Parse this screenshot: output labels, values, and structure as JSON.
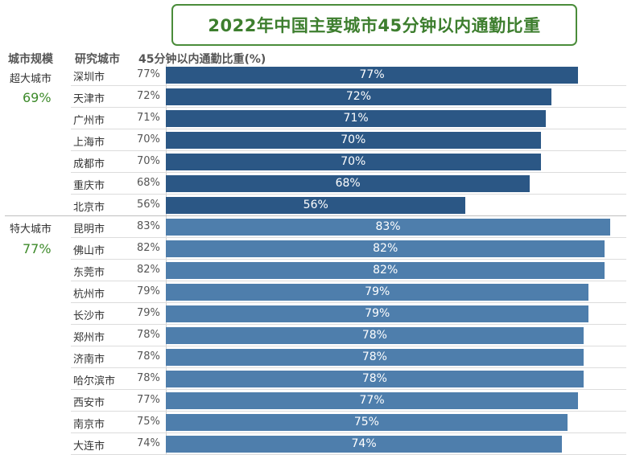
{
  "title": "2022年中国主要城市45分钟以内通勤比重",
  "headers": {
    "scale": "城市规模",
    "city": "研究城市",
    "metric": "45分钟以内通勤比重(%)"
  },
  "colors": {
    "super": "#2b5785",
    "mega": "#4e7eac",
    "title": "#3d7e2e",
    "group_value": "#3d8a2a"
  },
  "groups": [
    {
      "name": "超大城市",
      "value": "69%",
      "color_key": "super"
    },
    {
      "name": "特大城市",
      "value": "77%",
      "color_key": "mega"
    }
  ],
  "chart_data": {
    "type": "bar",
    "orientation": "horizontal",
    "title": "2022年中国主要城市45分钟以内通勤比重",
    "xlim": [
      0,
      86
    ],
    "grid": false,
    "rows": [
      {
        "group": "超大城市",
        "city": "深圳市",
        "value": 77,
        "pct_text": "77%",
        "bar_label": "77%"
      },
      {
        "group": "超大城市",
        "city": "天津市",
        "value": 72,
        "pct_text": "72%",
        "bar_label": "72%"
      },
      {
        "group": "超大城市",
        "city": "广州市",
        "value": 71,
        "pct_text": "71%",
        "bar_label": "71%"
      },
      {
        "group": "超大城市",
        "city": "上海市",
        "value": 70,
        "pct_text": "70%",
        "bar_label": "70%"
      },
      {
        "group": "超大城市",
        "city": "成都市",
        "value": 70,
        "pct_text": "70%",
        "bar_label": "70%"
      },
      {
        "group": "超大城市",
        "city": "重庆市",
        "value": 68,
        "pct_text": "68%",
        "bar_label": "68%"
      },
      {
        "group": "超大城市",
        "city": "北京市",
        "value": 56,
        "pct_text": "56%",
        "bar_label": "56%"
      },
      {
        "group": "特大城市",
        "city": "昆明市",
        "value": 83,
        "pct_text": "83%",
        "bar_label": "83%"
      },
      {
        "group": "特大城市",
        "city": "佛山市",
        "value": 82,
        "pct_text": "82%",
        "bar_label": "82%"
      },
      {
        "group": "特大城市",
        "city": "东莞市",
        "value": 82,
        "pct_text": "82%",
        "bar_label": "82%"
      },
      {
        "group": "特大城市",
        "city": "杭州市",
        "value": 79,
        "pct_text": "79%",
        "bar_label": "79%"
      },
      {
        "group": "特大城市",
        "city": "长沙市",
        "value": 79,
        "pct_text": "79%",
        "bar_label": "79%"
      },
      {
        "group": "特大城市",
        "city": "郑州市",
        "value": 78,
        "pct_text": "78%",
        "bar_label": "78%"
      },
      {
        "group": "特大城市",
        "city": "济南市",
        "value": 78,
        "pct_text": "78%",
        "bar_label": "78%"
      },
      {
        "group": "特大城市",
        "city": "哈尔滨市",
        "value": 78,
        "pct_text": "78%",
        "bar_label": "78%"
      },
      {
        "group": "特大城市",
        "city": "西安市",
        "value": 77,
        "pct_text": "77%",
        "bar_label": "77%"
      },
      {
        "group": "特大城市",
        "city": "南京市",
        "value": 75,
        "pct_text": "75%",
        "bar_label": "75%"
      },
      {
        "group": "特大城市",
        "city": "大连市",
        "value": 74,
        "pct_text": "74%",
        "bar_label": "74%"
      }
    ]
  }
}
